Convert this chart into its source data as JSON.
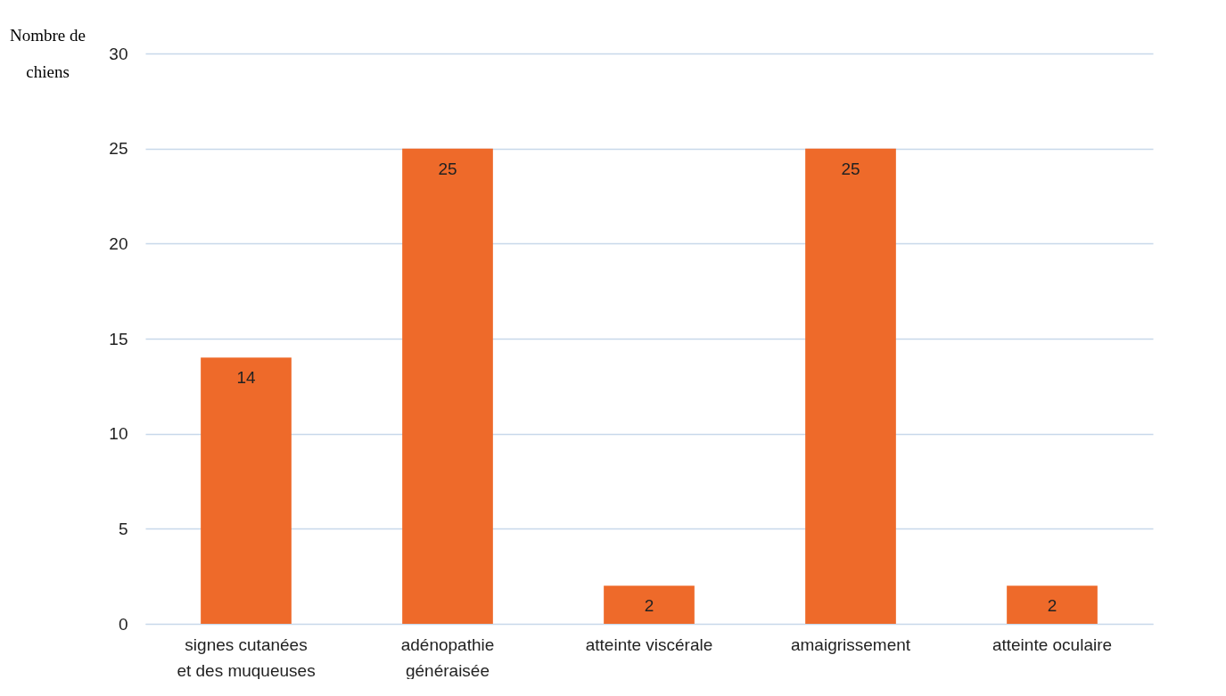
{
  "chart_data": {
    "type": "bar",
    "ylabel": "Nombre de chiens",
    "categories": [
      "signes cutanées et des muqueuses",
      "adénopathie généraisée",
      "atteinte viscérale",
      "amaigrissement",
      "atteinte oculaire"
    ],
    "values": [
      14,
      25,
      2,
      25,
      2
    ],
    "color": "#ee6a2a",
    "ylim": [
      0,
      30
    ],
    "yticks": [
      0,
      5,
      10,
      15,
      20,
      25,
      30
    ],
    "grid": "y",
    "data_labels": true
  }
}
